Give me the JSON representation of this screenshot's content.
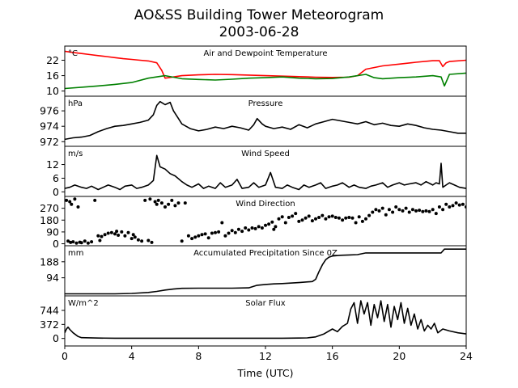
{
  "chart_data": {
    "type": "line",
    "title": "AO&SS Building Tower Meteorogram",
    "subtitle": "2003-06-28",
    "xlabel": "Time (UTC)",
    "xlim": [
      0,
      24
    ],
    "xticks": [
      0,
      4,
      8,
      12,
      16,
      20,
      24
    ],
    "panels": [
      {
        "name": "temperature",
        "title": "Air and Dewpoint Temperature",
        "unit": "°C",
        "ylim": [
          8,
          27.5
        ],
        "yticks": [
          10,
          16,
          22
        ],
        "series": [
          {
            "name": "Air Temperature",
            "color": "#ff0000",
            "style": "line",
            "x": [
              0,
              0.5,
              1,
              1.5,
              2,
              2.5,
              3,
              3.5,
              4,
              4.5,
              5,
              5.5,
              5.8,
              6,
              6.5,
              7,
              8,
              9,
              10,
              11,
              12,
              13,
              14,
              15,
              16,
              17,
              17.5,
              18,
              19,
              20,
              21,
              22,
              22.4,
              22.6,
              22.8,
              23,
              24
            ],
            "y": [
              25.5,
              25,
              24.6,
              24.2,
              23.8,
              23.4,
              23,
              22.6,
              22.3,
              22,
              21.7,
              21,
              18,
              15,
              15.5,
              16,
              16.3,
              16.5,
              16.4,
              16.2,
              16,
              15.8,
              15.6,
              15.4,
              15.3,
              15.4,
              16,
              18.5,
              19.8,
              20.5,
              21.2,
              21.8,
              21.8,
              19.5,
              21,
              21.5,
              22
            ]
          },
          {
            "name": "Dewpoint Temperature",
            "color": "#008000",
            "style": "line",
            "x": [
              0,
              1,
              2,
              3,
              4,
              5,
              6,
              7,
              8,
              9,
              10,
              11,
              12,
              13,
              14,
              15,
              16,
              17,
              18,
              18.5,
              19,
              20,
              21,
              22,
              22.5,
              22.7,
              23,
              24
            ],
            "y": [
              11,
              11.5,
              12,
              12.6,
              13.3,
              15,
              16,
              14.8,
              14.5,
              14.3,
              14.6,
              15,
              15.2,
              15.5,
              15,
              14.8,
              14.9,
              15.5,
              16.5,
              15.2,
              14.8,
              15.2,
              15.5,
              16,
              15.5,
              12,
              16.5,
              17
            ]
          }
        ]
      },
      {
        "name": "pressure",
        "title": "Pressure",
        "unit": "hPa",
        "ylim": [
          971.4,
          977.9
        ],
        "yticks": [
          972,
          974,
          976
        ],
        "series": [
          {
            "name": "Pressure",
            "color": "#000000",
            "style": "line",
            "x": [
              0,
              0.5,
              1,
              1.5,
              2,
              2.5,
              3,
              3.5,
              4,
              4.5,
              5,
              5.3,
              5.5,
              5.7,
              6,
              6.3,
              6.5,
              6.8,
              7,
              7.5,
              8,
              8.5,
              9,
              9.5,
              10,
              10.5,
              11,
              11.3,
              11.5,
              11.8,
              12,
              12.5,
              13,
              13.5,
              14,
              14.5,
              15,
              15.5,
              16,
              16.5,
              17,
              17.5,
              18,
              18.5,
              19,
              19.5,
              20,
              20.5,
              21,
              21.5,
              22,
              22.5,
              23,
              23.5,
              24
            ],
            "y": [
              972.3,
              972.5,
              972.6,
              972.8,
              973.3,
              973.7,
              974,
              974.1,
              974.3,
              974.5,
              974.8,
              975.5,
              976.7,
              977.2,
              976.8,
              977.1,
              976,
              975,
              974.3,
              973.7,
              973.4,
              973.6,
              973.9,
              973.7,
              974,
              973.8,
              973.5,
              974.2,
              975,
              974.3,
              974,
              973.7,
              973.9,
              973.6,
              974.2,
              973.8,
              974.3,
              974.6,
              974.9,
              974.7,
              974.5,
              974.3,
              974.6,
              974.2,
              974.4,
              974.1,
              974,
              974.3,
              974.1,
              973.8,
              973.6,
              973.5,
              973.3,
              973.1,
              973.1
            ]
          }
        ]
      },
      {
        "name": "wind_speed",
        "title": "Wind Speed",
        "unit": "m/s",
        "ylim": [
          -2,
          20
        ],
        "yticks": [
          0,
          6,
          12
        ],
        "series": [
          {
            "name": "Wind Speed",
            "color": "#000000",
            "style": "line",
            "x": [
              0,
              0.3,
              0.6,
              1,
              1.3,
              1.6,
              2,
              2.3,
              2.6,
              3,
              3.3,
              3.6,
              4,
              4.3,
              4.6,
              5,
              5.3,
              5.5,
              5.7,
              6,
              6.3,
              6.6,
              7,
              7.3,
              7.6,
              8,
              8.3,
              8.6,
              9,
              9.3,
              9.6,
              10,
              10.3,
              10.6,
              11,
              11.3,
              11.6,
              12,
              12.3,
              12.6,
              13,
              13.3,
              13.6,
              14,
              14.3,
              14.6,
              15,
              15.3,
              15.6,
              16,
              16.3,
              16.6,
              17,
              17.3,
              17.6,
              18,
              18.3,
              18.6,
              19,
              19.3,
              19.6,
              20,
              20.3,
              20.6,
              21,
              21.3,
              21.6,
              22,
              22.2,
              22.4,
              22.5,
              22.6,
              22.8,
              23,
              23.3,
              23.6,
              24
            ],
            "y": [
              1.5,
              2,
              3,
              2,
              1.5,
              2.5,
              1,
              2,
              3,
              2,
              1,
              2.5,
              3,
              1.5,
              2,
              3,
              5,
              16,
              11,
              10,
              8,
              7,
              4.5,
              3,
              2,
              3.5,
              1.5,
              2.5,
              1.5,
              4,
              2,
              3,
              5.5,
              1.5,
              2,
              4,
              2,
              3,
              8.5,
              2,
              1.5,
              3,
              2,
              1,
              3,
              2,
              3,
              4,
              1.5,
              2.5,
              3,
              4,
              2,
              3,
              2,
              1.5,
              2.5,
              3,
              4,
              2,
              3,
              4,
              3,
              3.5,
              4,
              3,
              4.5,
              3,
              4,
              3.5,
              12.5,
              2,
              3,
              4,
              3,
              2,
              1.5
            ]
          }
        ]
      },
      {
        "name": "wind_direction",
        "title": "Wind Direction",
        "unit": "",
        "ylim": [
          -15,
          360
        ],
        "yticks": [
          0,
          90,
          180,
          270
        ],
        "series": [
          {
            "name": "Wind Direction",
            "color": "#000000",
            "style": "dots",
            "x": [
              0.1,
              0.2,
              0.3,
              0.35,
              0.4,
              0.5,
              0.6,
              0.7,
              0.8,
              0.9,
              1.0,
              1.2,
              1.4,
              1.6,
              1.8,
              2.0,
              2.1,
              2.2,
              2.4,
              2.6,
              2.8,
              3.0,
              3.1,
              3.2,
              3.4,
              3.6,
              3.8,
              4.0,
              4.1,
              4.2,
              4.4,
              4.6,
              4.8,
              5.0,
              5.1,
              5.2,
              5.4,
              5.5,
              5.6,
              5.8,
              6.0,
              6.2,
              6.4,
              6.6,
              6.8,
              7.0,
              7.2,
              7.4,
              7.6,
              7.8,
              8.0,
              8.2,
              8.4,
              8.6,
              8.8,
              9.0,
              9.2,
              9.4,
              9.6,
              9.8,
              10.0,
              10.2,
              10.4,
              10.6,
              10.8,
              11.0,
              11.2,
              11.4,
              11.6,
              11.8,
              12.0,
              12.2,
              12.4,
              12.5,
              12.6,
              12.8,
              13.0,
              13.2,
              13.4,
              13.6,
              13.8,
              14.0,
              14.2,
              14.4,
              14.6,
              14.8,
              15.0,
              15.2,
              15.4,
              15.6,
              15.8,
              16.0,
              16.2,
              16.4,
              16.6,
              16.8,
              17.0,
              17.2,
              17.4,
              17.6,
              17.8,
              18.0,
              18.2,
              18.4,
              18.6,
              18.8,
              19.0,
              19.2,
              19.4,
              19.6,
              19.8,
              20.0,
              20.2,
              20.4,
              20.6,
              20.8,
              21.0,
              21.2,
              21.4,
              21.6,
              21.8,
              22.0,
              22.2,
              22.4,
              22.6,
              22.8,
              23.0,
              23.2,
              23.4,
              23.6,
              23.8,
              24.0
            ],
            "y": [
              330,
              20,
              320,
              10,
              300,
              15,
              340,
              5,
              280,
              12,
              8,
              20,
              5,
              15,
              330,
              60,
              25,
              55,
              70,
              80,
              85,
              75,
              95,
              65,
              90,
              60,
              85,
              40,
              70,
              50,
              30,
              20,
              330,
              25,
              340,
              10,
              320,
              300,
              330,
              310,
              280,
              300,
              330,
              290,
              310,
              20,
              310,
              60,
              40,
              50,
              60,
              70,
              75,
              45,
              80,
              85,
              90,
              160,
              60,
              80,
              100,
              85,
              110,
              95,
              120,
              105,
              120,
              115,
              130,
              120,
              140,
              150,
              165,
              110,
              130,
              190,
              205,
              160,
              200,
              210,
              230,
              170,
              180,
              195,
              210,
              175,
              190,
              200,
              215,
              190,
              205,
              210,
              200,
              195,
              180,
              195,
              200,
              195,
              160,
              205,
              170,
              190,
              215,
              240,
              260,
              250,
              270,
              220,
              260,
              240,
              280,
              260,
              250,
              270,
              240,
              260,
              250,
              255,
              245,
              250,
              245,
              260,
              230,
              280,
              260,
              300,
              280,
              290,
              310,
              295,
              300,
              280
            ]
          }
        ]
      },
      {
        "name": "precipitation",
        "title": "Accumulated Precipitation Since 0Z",
        "unit": "mm",
        "ylim": [
          -12,
          282
        ],
        "yticks": [
          94,
          188
        ],
        "series": [
          {
            "name": "Accumulated Precipitation",
            "color": "#000000",
            "style": "line",
            "x": [
              0,
              3,
              4,
              5,
              5.5,
              6,
              6.5,
              7,
              8,
              9,
              10,
              11,
              11.5,
              12,
              12.5,
              13,
              14,
              14.8,
              15,
              15.2,
              15.4,
              15.6,
              15.8,
              16,
              16.5,
              17,
              17.5,
              18,
              19,
              20,
              21,
              22,
              22.5,
              22.7,
              22.9,
              24
            ],
            "y": [
              0,
              0,
              2,
              8,
              14,
              22,
              28,
              32,
              33,
              33,
              33,
              35,
              50,
              55,
              58,
              60,
              66,
              72,
              85,
              130,
              170,
              200,
              215,
              222,
              226,
              228,
              230,
              240,
              240,
              240,
              240,
              240,
              240,
              262,
              262,
              262
            ]
          }
        ]
      },
      {
        "name": "solar_flux",
        "title": "Solar Flux",
        "unit": "W/m^2",
        "ylim": [
          -200,
          1130
        ],
        "yticks": [
          0,
          372,
          744
        ],
        "series": [
          {
            "name": "Solar Flux",
            "color": "#000000",
            "style": "line",
            "x": [
              0,
              0.1,
              0.2,
              0.3,
              0.5,
              0.8,
              1,
              2,
              3,
              4,
              5,
              6,
              7,
              8,
              9,
              10,
              11,
              12,
              13,
              14,
              14.5,
              15,
              15.5,
              16,
              16.3,
              16.6,
              16.9,
              17.1,
              17.3,
              17.5,
              17.7,
              17.9,
              18.1,
              18.3,
              18.5,
              18.7,
              18.9,
              19.1,
              19.3,
              19.5,
              19.7,
              19.9,
              20.1,
              20.3,
              20.5,
              20.7,
              20.9,
              21.1,
              21.3,
              21.5,
              21.7,
              21.9,
              22.1,
              22.3,
              22.6,
              23,
              23.5,
              24
            ],
            "y": [
              150,
              250,
              300,
              240,
              150,
              50,
              20,
              10,
              5,
              5,
              5,
              5,
              5,
              5,
              5,
              5,
              5,
              5,
              5,
              10,
              15,
              40,
              120,
              250,
              180,
              320,
              400,
              780,
              950,
              400,
              1000,
              650,
              950,
              350,
              900,
              550,
              1000,
              450,
              900,
              300,
              850,
              500,
              950,
              400,
              800,
              350,
              650,
              250,
              500,
              200,
              350,
              250,
              400,
              150,
              250,
              200,
              150,
              120
            ]
          }
        ]
      }
    ]
  }
}
